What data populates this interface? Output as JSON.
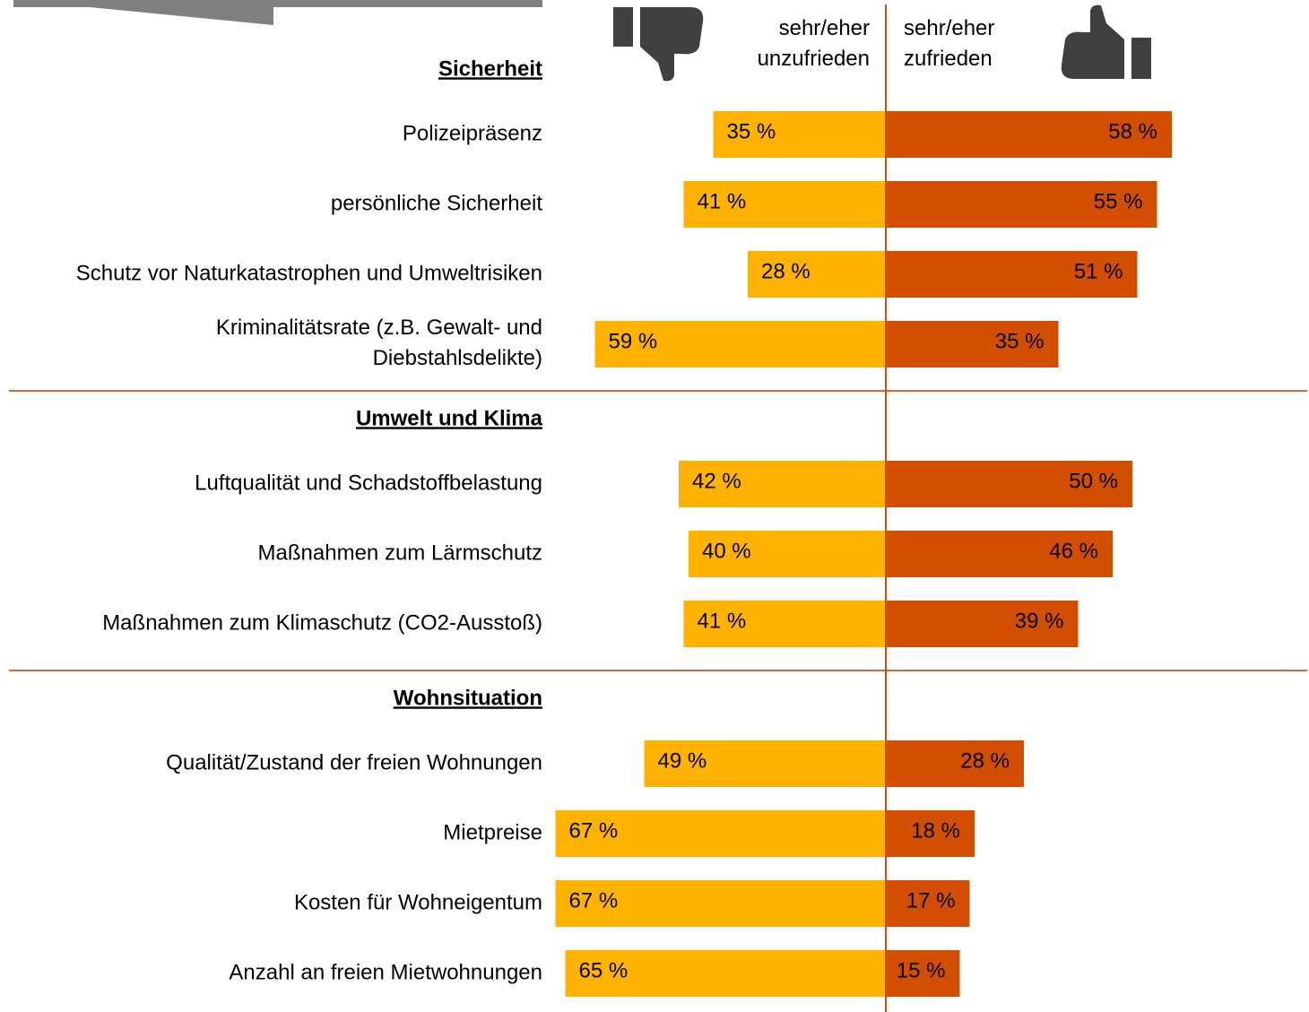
{
  "chart_data": {
    "type": "diverging-bar",
    "series": [
      {
        "name": [
          "sehr/eher",
          "unzufrieden"
        ],
        "color": "#ffb300"
      },
      {
        "name": [
          "sehr/eher",
          "zufrieden"
        ],
        "color": "#d24e01"
      }
    ],
    "groups": [
      {
        "title": "Sicherheit",
        "categories": [
          "Polizeipräsenz",
          "persönliche Sicherheit",
          "Schutz vor Naturkatastrophen und Umweltrisiken",
          [
            "Kriminalitätsrate (z.B. Gewalt- und",
            "Diebstahlsdelikte)"
          ]
        ],
        "series": [
          {
            "values": [
              35,
              41,
              28,
              59
            ],
            "value_labels": [
              "35 %",
              "41 %",
              "28 %",
              "59 %"
            ]
          },
          {
            "values": [
              58,
              55,
              51,
              35
            ],
            "value_labels": [
              "58 %",
              "55 %",
              "51 %",
              "35 %"
            ]
          }
        ]
      },
      {
        "title": "Umwelt und Klima",
        "categories": [
          "Luftqualität und Schadstoffbelastung",
          "Maßnahmen zum Lärmschutz",
          "Maßnahmen zum Klimaschutz (CO2-Ausstoß)"
        ],
        "series": [
          {
            "values": [
              42,
              40,
              41
            ],
            "value_labels": [
              "42 %",
              "40 %",
              "41 %"
            ]
          },
          {
            "values": [
              50,
              46,
              39
            ],
            "value_labels": [
              "50 %",
              "46 %",
              "39 %"
            ]
          }
        ]
      },
      {
        "title": "Wohnsituation",
        "categories": [
          "Qualität/Zustand der freien Wohnungen",
          "Mietpreise",
          "Kosten für Wohneigentum",
          "Anzahl an freien Mietwohnungen"
        ],
        "series": [
          {
            "values": [
              49,
              67,
              67,
              65
            ],
            "value_labels": [
              "49 %",
              "67 %",
              "67 %",
              "65 %"
            ]
          },
          {
            "values": [
              28,
              18,
              17,
              15
            ],
            "value_labels": [
              "28 %",
              "18 %",
              "17 %",
              "15 %"
            ]
          }
        ]
      }
    ]
  }
}
